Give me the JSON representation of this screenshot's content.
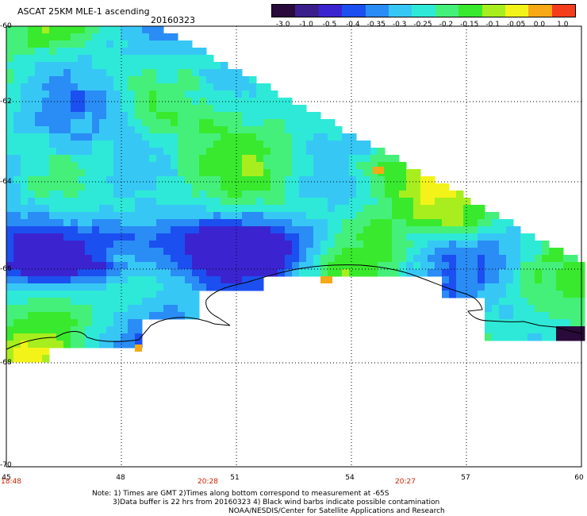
{
  "header": {
    "title": "ASCAT 25KM MLE-1 ascending",
    "date": "20160323"
  },
  "colorbar": {
    "labels": [
      "-3.0",
      "-1.0",
      "-0.5",
      "-0.4",
      "-0.35",
      "-0.3",
      "-0.25",
      "-0.2",
      "-0.15",
      "-0.1",
      "-0.05",
      "0.0",
      "1.0"
    ],
    "colors": [
      "#2a0a3a",
      "#3a1f8c",
      "#3b24d0",
      "#1c4ff0",
      "#2a8cf5",
      "#37c7f5",
      "#2ee9d7",
      "#45f07a",
      "#39e92e",
      "#a8ee1e",
      "#f3f31a",
      "#f7a816",
      "#f43d1c"
    ]
  },
  "axes": {
    "y_labels": [
      "-60",
      "-62",
      "-64",
      "-66",
      "-68",
      "-70"
    ],
    "x_labels": [
      "45",
      "48",
      "51",
      "54",
      "57",
      "60"
    ],
    "times": [
      "18:48",
      "20:28",
      "20:27"
    ]
  },
  "notes": {
    "line1": "Note: 1) Times are GMT 2)Times along bottom correspond to measurement at -65S",
    "line2": "3)Data buffer is 22 hrs from 20160323 4) Black wind barbs indicate possible contamination",
    "line3": "NOAA/NESDIS/Center for Satellite Applications and Research"
  }
}
